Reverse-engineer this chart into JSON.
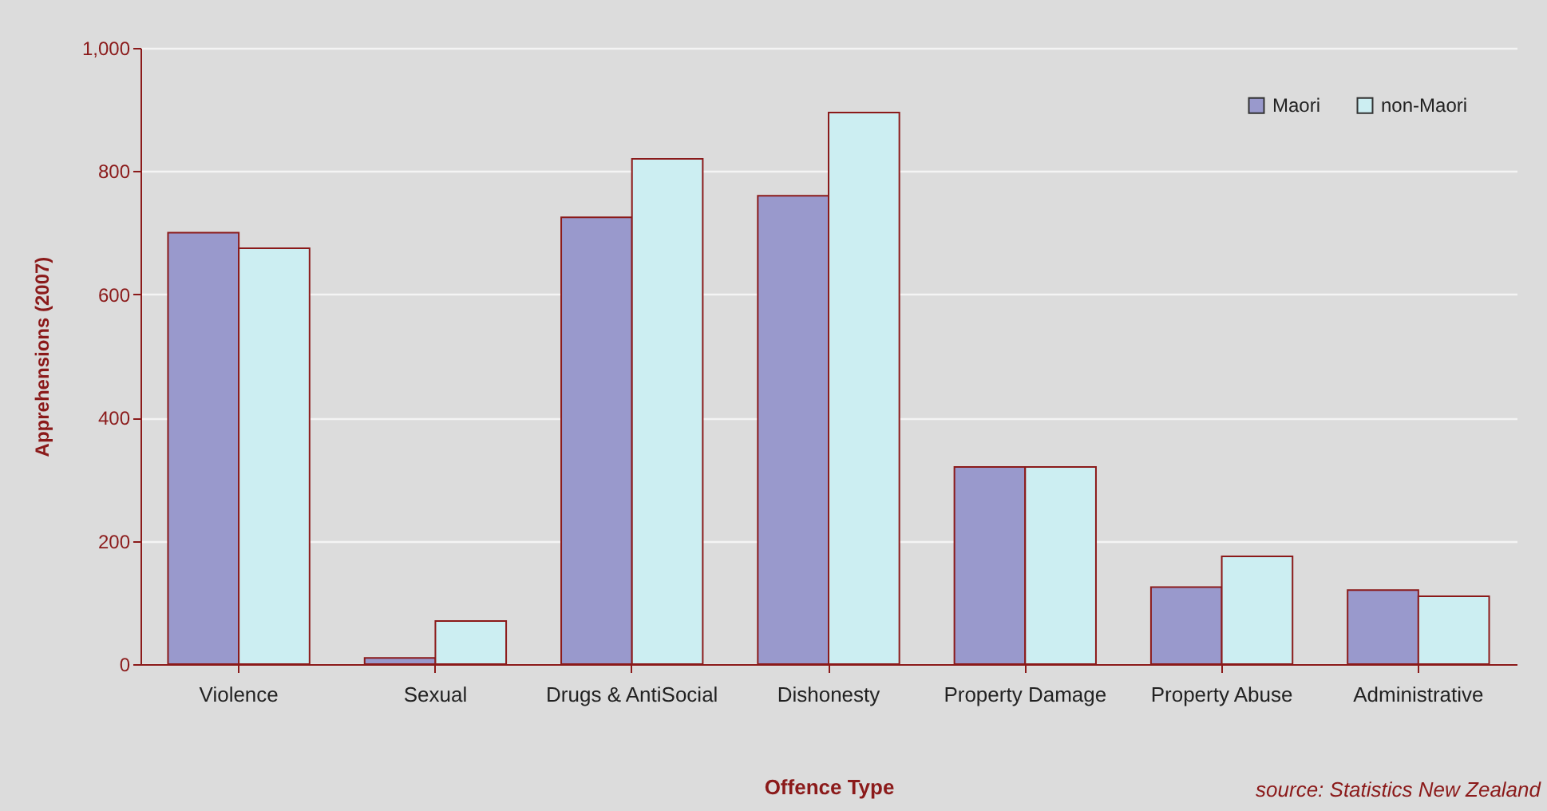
{
  "chart_data": {
    "type": "bar",
    "xlabel": "Offence Type",
    "ylabel": "Apprehensions (2007)",
    "categories": [
      "Violence",
      "Sexual",
      "Drugs & AntiSocial",
      "Dishonesty",
      "Property Damage",
      "Property Abuse",
      "Administrative"
    ],
    "series": [
      {
        "name": "Maori",
        "color": "#9999cc",
        "values": [
          700,
          10,
          725,
          760,
          320,
          125,
          120
        ]
      },
      {
        "name": "non-Maori",
        "color": "#cceef2",
        "values": [
          675,
          70,
          820,
          895,
          320,
          175,
          110
        ]
      }
    ],
    "ylim": [
      0,
      1000
    ],
    "yticks": [
      0,
      200,
      400,
      600,
      800,
      {
        "value": 1000,
        "label": "1,000"
      }
    ],
    "grid": "y",
    "legend": "top right",
    "annotations": [
      "source:  Statistics New Zealand"
    ]
  }
}
